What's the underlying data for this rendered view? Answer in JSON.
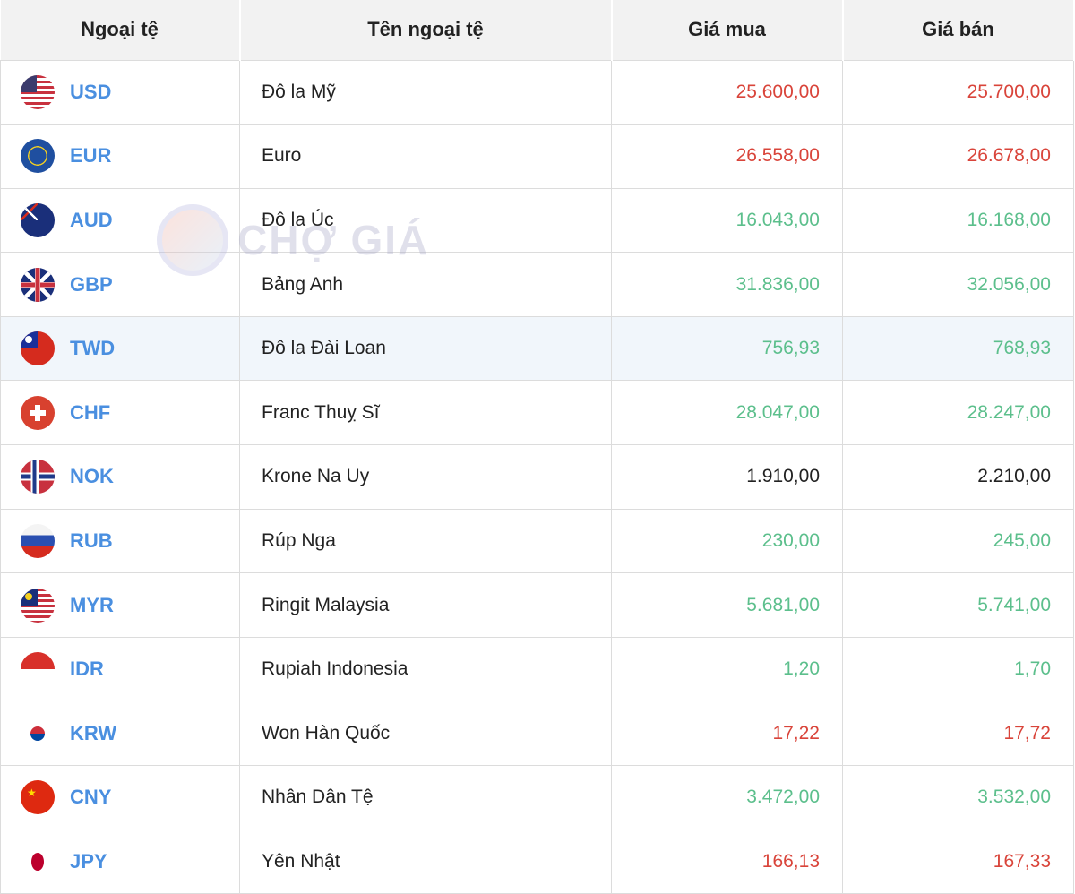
{
  "headers": [
    "Ngoại tệ",
    "Tên ngoại tệ",
    "Giá mua",
    "Giá bán"
  ],
  "watermark": "CHỢ GIÁ",
  "colors": {
    "up": "#5cbf8c",
    "down": "#d9443a",
    "unchanged": "#222222",
    "code": "#4a8fe0",
    "highlight_row": "#f1f6fb"
  },
  "rows": [
    {
      "code": "USD",
      "name": "Đô la Mỹ",
      "buy": "25.600,00",
      "sell": "25.700,00",
      "trend": "red",
      "flag": "us-flag-icon"
    },
    {
      "code": "EUR",
      "name": "Euro",
      "buy": "26.558,00",
      "sell": "26.678,00",
      "trend": "red",
      "flag": "eu-flag-icon"
    },
    {
      "code": "AUD",
      "name": "Đô la Úc",
      "buy": "16.043,00",
      "sell": "16.168,00",
      "trend": "green",
      "flag": "au-flag-icon"
    },
    {
      "code": "GBP",
      "name": "Bảng Anh",
      "buy": "31.836,00",
      "sell": "32.056,00",
      "trend": "green",
      "flag": "gb-flag-icon"
    },
    {
      "code": "TWD",
      "name": "Đô la Đài Loan",
      "buy": "756,93",
      "sell": "768,93",
      "trend": "green",
      "flag": "tw-flag-icon",
      "highlighted": true
    },
    {
      "code": "CHF",
      "name": "Franc Thuỵ Sĩ",
      "buy": "28.047,00",
      "sell": "28.247,00",
      "trend": "green",
      "flag": "ch-flag-icon"
    },
    {
      "code": "NOK",
      "name": "Krone Na Uy",
      "buy": "1.910,00",
      "sell": "2.210,00",
      "trend": "black",
      "flag": "no-flag-icon"
    },
    {
      "code": "RUB",
      "name": "Rúp Nga",
      "buy": "230,00",
      "sell": "245,00",
      "trend": "green",
      "flag": "ru-flag-icon"
    },
    {
      "code": "MYR",
      "name": "Ringit Malaysia",
      "buy": "5.681,00",
      "sell": "5.741,00",
      "trend": "green",
      "flag": "my-flag-icon"
    },
    {
      "code": "IDR",
      "name": "Rupiah Indonesia",
      "buy": "1,20",
      "sell": "1,70",
      "trend": "green",
      "flag": "id-flag-icon"
    },
    {
      "code": "KRW",
      "name": "Won Hàn Quốc",
      "buy": "17,22",
      "sell": "17,72",
      "trend": "red",
      "flag": "kr-flag-icon"
    },
    {
      "code": "CNY",
      "name": "Nhân Dân Tệ",
      "buy": "3.472,00",
      "sell": "3.532,00",
      "trend": "green",
      "flag": "cn-flag-icon"
    },
    {
      "code": "JPY",
      "name": "Yên Nhật",
      "buy": "166,13",
      "sell": "167,33",
      "trend": "red",
      "flag": "jp-flag-icon"
    }
  ]
}
